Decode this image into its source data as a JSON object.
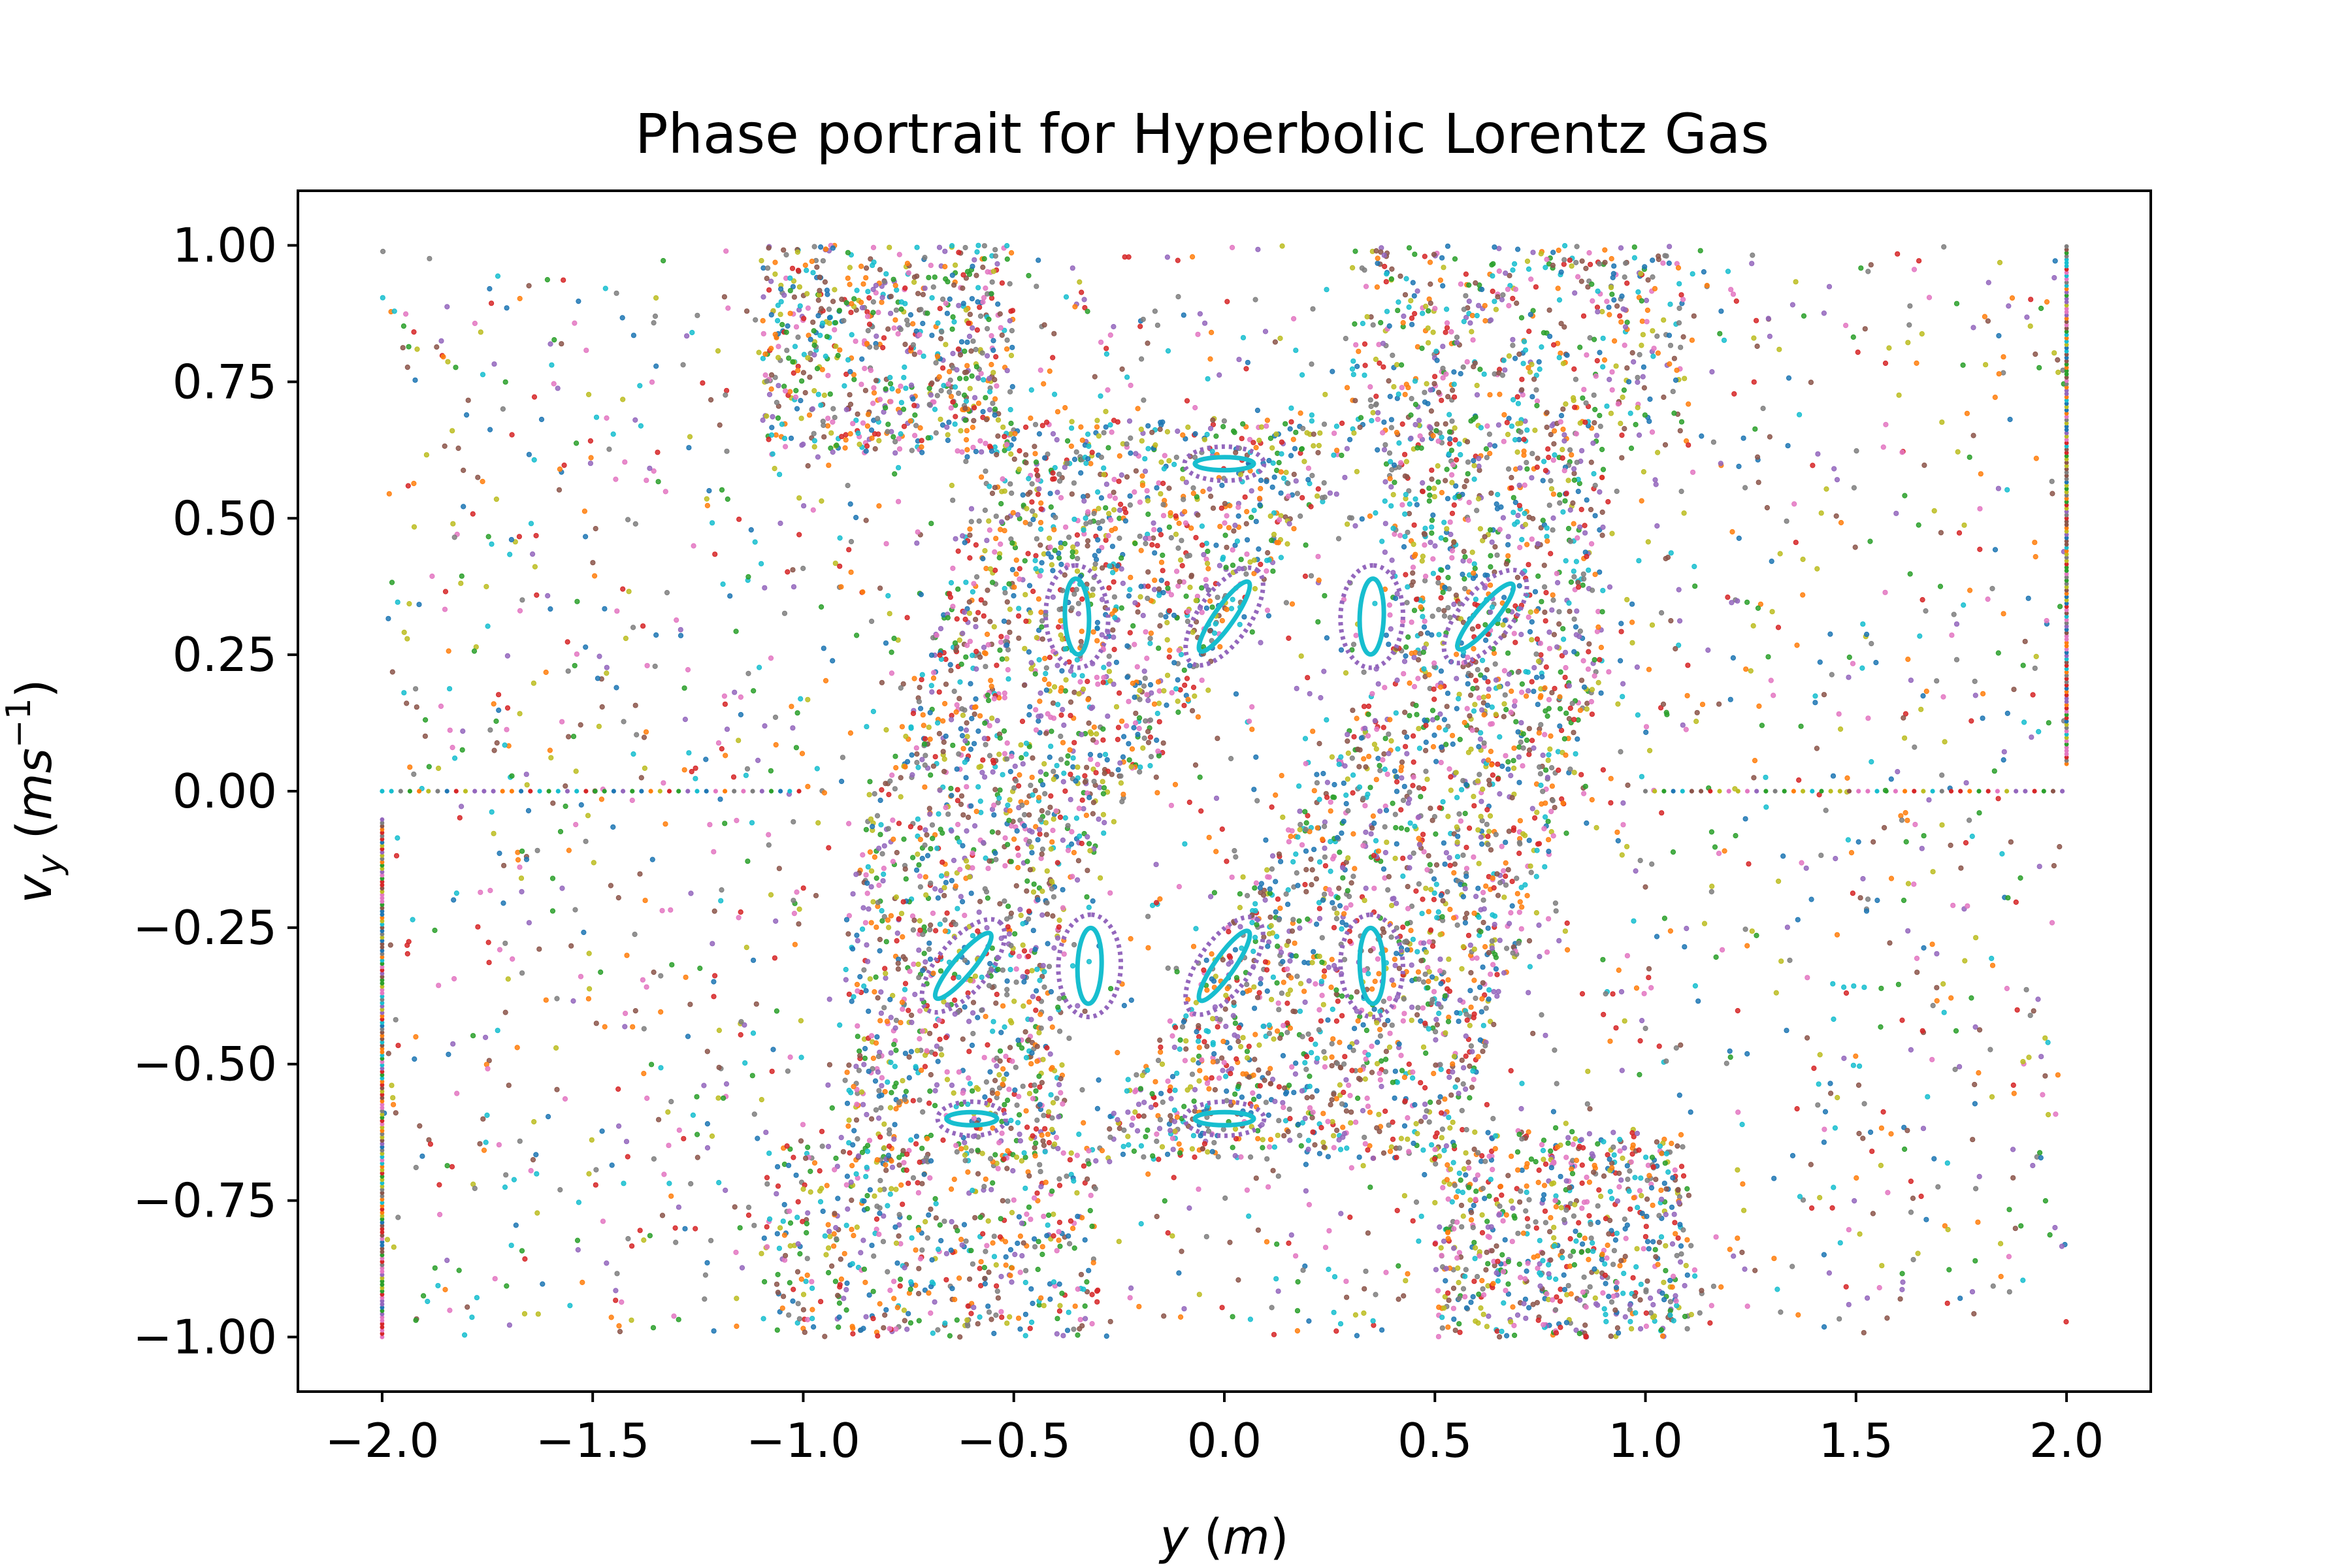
{
  "chart_data": {
    "type": "scatter",
    "title": "Phase portrait for Hyperbolic Lorentz Gas",
    "xlabel": {
      "var": "y",
      "unit": "m"
    },
    "ylabel": {
      "var": "v",
      "sub": "y",
      "unit_base": "ms",
      "unit_exp": "−1"
    },
    "xlim": [
      -2.2,
      2.2
    ],
    "ylim": [
      -1.1,
      1.1
    ],
    "x_ticks": [
      {
        "value": -2.0,
        "label": "−2.0"
      },
      {
        "value": -1.5,
        "label": "−1.5"
      },
      {
        "value": -1.0,
        "label": "−1.0"
      },
      {
        "value": -0.5,
        "label": "−0.5"
      },
      {
        "value": 0.0,
        "label": "0.0"
      },
      {
        "value": 0.5,
        "label": "0.5"
      },
      {
        "value": 1.0,
        "label": "1.0"
      },
      {
        "value": 1.5,
        "label": "1.5"
      },
      {
        "value": 2.0,
        "label": "2.0"
      }
    ],
    "y_ticks": [
      {
        "value": 1.0,
        "label": "1.00"
      },
      {
        "value": 0.75,
        "label": "0.75"
      },
      {
        "value": 0.5,
        "label": "0.50"
      },
      {
        "value": 0.25,
        "label": "0.25"
      },
      {
        "value": 0.0,
        "label": "0.00"
      },
      {
        "value": -0.25,
        "label": "−0.25"
      },
      {
        "value": -0.5,
        "label": "−0.50"
      },
      {
        "value": -0.75,
        "label": "−0.75"
      },
      {
        "value": -1.0,
        "label": "−1.00"
      }
    ],
    "grid": false,
    "legend": "none",
    "palette": [
      "#1f77b4",
      "#ff7f0e",
      "#2ca02c",
      "#d62728",
      "#9467bd",
      "#8c564b",
      "#e377c2",
      "#7f7f7f",
      "#bcbd22",
      "#17becf"
    ],
    "regions": [
      {
        "name": "background",
        "x": [
          -2.0,
          2.0
        ],
        "y": [
          -1.0,
          1.0
        ],
        "count": 2600
      },
      {
        "name": "top-left-block",
        "x": [
          -1.1,
          -0.5
        ],
        "y": [
          0.62,
          1.0
        ],
        "count": 650
      },
      {
        "name": "top-right-block",
        "x": [
          0.3,
          1.1
        ],
        "y": [
          0.65,
          1.0
        ],
        "count": 450
      },
      {
        "name": "bottom-left-block",
        "x": [
          -1.1,
          -0.3
        ],
        "y": [
          -1.0,
          -0.65
        ],
        "count": 450
      },
      {
        "name": "bottom-right-block",
        "x": [
          0.5,
          1.1
        ],
        "y": [
          -1.0,
          -0.62
        ],
        "count": 650
      },
      {
        "name": "central-ring",
        "x": [
          -0.9,
          0.9
        ],
        "y": [
          -0.7,
          0.7
        ],
        "count": 4200
      }
    ],
    "horizontal_lines": [
      {
        "y": 0.0,
        "x": [
          -2.0,
          -1.0
        ]
      },
      {
        "y": 0.0,
        "x": [
          1.0,
          2.0
        ]
      }
    ],
    "vertical_lines": [
      {
        "x": -2.0,
        "y": [
          -1.0,
          -0.05
        ]
      },
      {
        "x": 2.0,
        "y": [
          0.05,
          1.0
        ]
      }
    ],
    "islands": [
      {
        "x": 0.0,
        "y": 0.6,
        "rx": 0.07,
        "ry": 0.012,
        "angle": 0
      },
      {
        "x": 0.0,
        "y": -0.6,
        "rx": 0.07,
        "ry": 0.012,
        "angle": 0
      },
      {
        "x": -0.6,
        "y": -0.6,
        "rx": 0.06,
        "ry": 0.012,
        "angle": 0
      },
      {
        "x": 0.35,
        "y": 0.32,
        "rx": 0.09,
        "ry": 0.022,
        "angle": 88
      },
      {
        "x": -0.35,
        "y": 0.32,
        "rx": 0.09,
        "ry": 0.022,
        "angle": 92
      },
      {
        "x": 0.35,
        "y": -0.32,
        "rx": 0.09,
        "ry": 0.022,
        "angle": 92
      },
      {
        "x": -0.32,
        "y": -0.32,
        "rx": 0.09,
        "ry": 0.022,
        "angle": 88
      },
      {
        "x": 0.0,
        "y": 0.32,
        "rx": 0.1,
        "ry": 0.018,
        "angle": 55
      },
      {
        "x": 0.0,
        "y": -0.32,
        "rx": 0.1,
        "ry": 0.018,
        "angle": 55
      },
      {
        "x": 0.62,
        "y": 0.32,
        "rx": 0.1,
        "ry": 0.018,
        "angle": 50
      },
      {
        "x": -0.62,
        "y": -0.32,
        "rx": 0.1,
        "ry": 0.018,
        "angle": 50
      }
    ],
    "island_color": "#17becf"
  }
}
